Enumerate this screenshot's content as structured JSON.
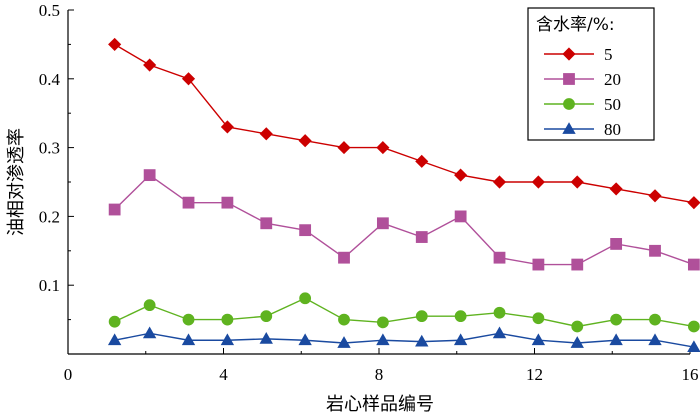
{
  "chart_data": {
    "type": "line",
    "xlabel": "岩心样品编号",
    "ylabel": "油相对渗透率",
    "xlim": [
      0,
      16
    ],
    "ylim": [
      0,
      0.5
    ],
    "xticks": [
      0,
      4,
      8,
      12,
      16
    ],
    "yticks": [
      0.1,
      0.2,
      0.3,
      0.4,
      0.5
    ],
    "xtick_labels": [
      "0",
      "4",
      "8",
      "12",
      "16"
    ],
    "ytick_labels": [
      "0.1",
      "0.2",
      "0.3",
      "0.4",
      "0.5"
    ],
    "x": [
      1.2,
      2.1,
      3.1,
      4.1,
      5.1,
      6.1,
      7.1,
      8.1,
      9.1,
      10.1,
      11.1,
      12.1,
      13.1,
      14.1,
      15.1,
      16.1
    ],
    "legend": {
      "title": "含水率/%:",
      "position": "top-right"
    },
    "grid": false,
    "series": [
      {
        "name": "5",
        "marker": "diamond",
        "color": "#cc0000",
        "values": [
          0.45,
          0.42,
          0.4,
          0.33,
          0.32,
          0.31,
          0.3,
          0.3,
          0.28,
          0.26,
          0.25,
          0.25,
          0.25,
          0.24,
          0.23,
          0.22
        ]
      },
      {
        "name": "20",
        "marker": "square",
        "color": "#b0509a",
        "values": [
          0.21,
          0.26,
          0.22,
          0.22,
          0.19,
          0.18,
          0.14,
          0.19,
          0.17,
          0.2,
          0.14,
          0.13,
          0.13,
          0.16,
          0.15,
          0.13
        ]
      },
      {
        "name": "50",
        "marker": "circle",
        "color": "#5fb320",
        "values": [
          0.047,
          0.071,
          0.05,
          0.05,
          0.055,
          0.081,
          0.05,
          0.046,
          0.055,
          0.055,
          0.06,
          0.052,
          0.04,
          0.05,
          0.05,
          0.04
        ]
      },
      {
        "name": "80",
        "marker": "triangle",
        "color": "#1a4aa0",
        "values": [
          0.02,
          0.03,
          0.02,
          0.02,
          0.022,
          0.02,
          0.016,
          0.02,
          0.018,
          0.02,
          0.03,
          0.02,
          0.016,
          0.02,
          0.02,
          0.01
        ]
      }
    ]
  }
}
